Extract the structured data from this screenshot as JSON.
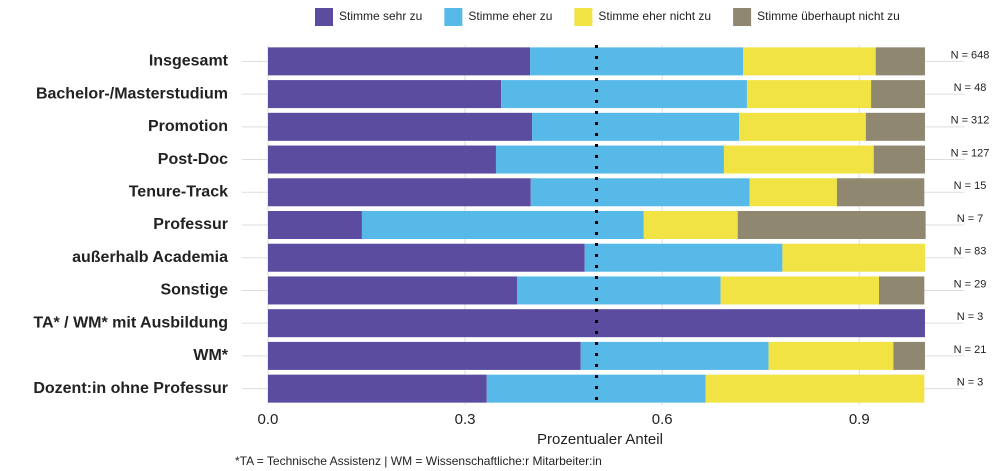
{
  "chart_data": {
    "type": "stacked_barh",
    "x_label": "Prozentualer Anteil",
    "footnote": "*TA = Technische Assistenz | WM = Wissenschaftliche:r Mitarbeiter:in",
    "categories": [
      "Insgesamt",
      "Bachelor-/Masterstudium",
      "Promotion",
      "Post-Doc",
      "Tenure-Track",
      "Professur",
      "außerhalb Academia",
      "Sonstige",
      "TA* / WM* mit Ausbildung",
      "WM*",
      "Dozent:in ohne Professur"
    ],
    "n_labels": [
      "N = 648",
      "N = 48",
      "N = 312",
      "N = 127",
      "N = 15",
      "N = 7",
      "N = 83",
      "N = 29",
      "N = 3",
      "N = 21",
      "N = 3"
    ],
    "series": [
      {
        "name": "Stimme sehr zu",
        "color": "#5b4c9f",
        "values": [
          0.399,
          0.355,
          0.402,
          0.347,
          0.4,
          0.143,
          0.482,
          0.379,
          1,
          0.476,
          0.333
        ]
      },
      {
        "name": "Stimme eher zu",
        "color": "#56b9e8",
        "values": [
          0.324,
          0.374,
          0.315,
          0.347,
          0.333,
          0.429,
          0.301,
          0.31,
          0,
          0.286,
          0.333
        ]
      },
      {
        "name": "Stimme eher nicht zu",
        "color": "#f0e343",
        "values": [
          0.202,
          0.189,
          0.193,
          0.228,
          0.133,
          0.143,
          0.217,
          0.241,
          0,
          0.19,
          0.333
        ]
      },
      {
        "name": "Stimme überhaupt nicht zu",
        "color": "#8f8770",
        "values": [
          0.075,
          0.082,
          0.09,
          0.078,
          0.133,
          0.286,
          0,
          0.069,
          0,
          0.048,
          0
        ]
      }
    ],
    "xlim": [
      -0.04,
      1.06
    ],
    "xticks": [
      {
        "value": 0,
        "label": "0.0"
      },
      0.3,
      0.6,
      0.9
    ],
    "reference_line": 0.5,
    "grid": true,
    "legend": "top"
  }
}
